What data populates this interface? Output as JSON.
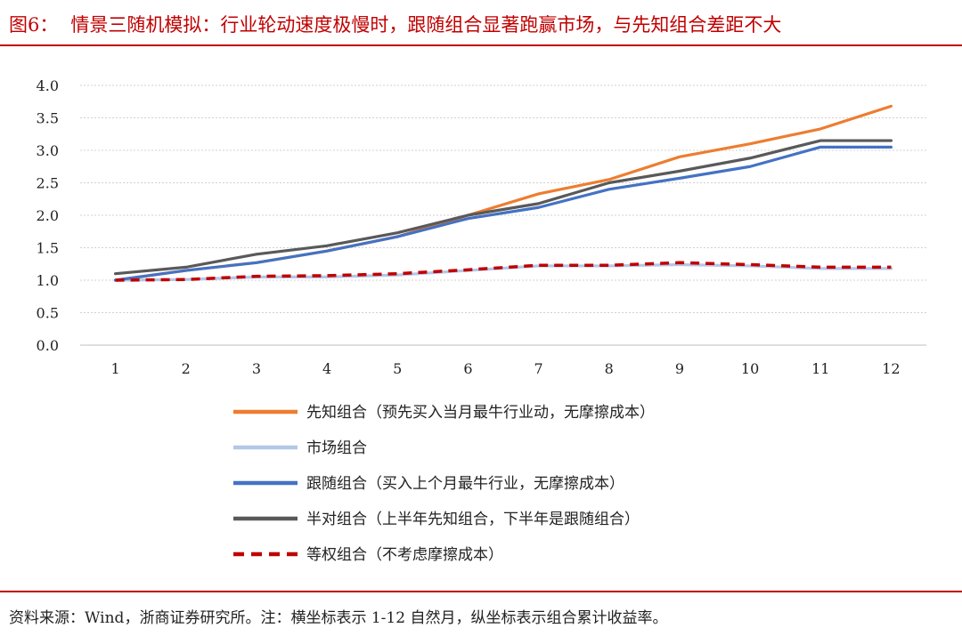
{
  "header": {
    "figure_no": "图6：",
    "title": "情景三随机模拟：行业轮动速度极慢时，跟随组合显著跑赢市场，与先知组合差距不大"
  },
  "footer": {
    "source": "资料来源：Wind，浙商证券研究所。注：横坐标表示 1-12 自然月，纵坐标表示组合累计收益率。"
  },
  "chart_data": {
    "type": "line",
    "x": [
      1,
      2,
      3,
      4,
      5,
      6,
      7,
      8,
      9,
      10,
      11,
      12
    ],
    "ylim": [
      0,
      4
    ],
    "yticks": [
      "0.0",
      "0.5",
      "1.0",
      "1.5",
      "2.0",
      "2.5",
      "3.0",
      "3.5",
      "4.0"
    ],
    "xticks": [
      "1",
      "2",
      "3",
      "4",
      "5",
      "6",
      "7",
      "8",
      "9",
      "10",
      "11",
      "12"
    ],
    "grid": "horizontal-dotted",
    "legend_position": "bottom",
    "series": [
      {
        "name": "先知组合（预先买入当月最牛行业动，无摩擦成本）",
        "color": "#ed7d31",
        "dash": false,
        "values": [
          1.0,
          1.15,
          1.27,
          1.45,
          1.67,
          2.0,
          2.33,
          2.55,
          2.9,
          3.1,
          3.33,
          3.68
        ]
      },
      {
        "name": "市场组合",
        "color": "#b4c7e7",
        "dash": false,
        "values": [
          1.0,
          1.01,
          1.05,
          1.05,
          1.08,
          1.15,
          1.22,
          1.22,
          1.24,
          1.22,
          1.18,
          1.18
        ]
      },
      {
        "name": "跟随组合（买入上个月最牛行业，无摩擦成本）",
        "color": "#4472c4",
        "dash": false,
        "values": [
          1.0,
          1.15,
          1.27,
          1.45,
          1.67,
          1.95,
          2.12,
          2.4,
          2.57,
          2.75,
          3.05,
          3.05
        ]
      },
      {
        "name": "半对组合（上半年先知组合，下半年是跟随组合）",
        "color": "#595959",
        "dash": false,
        "values": [
          1.1,
          1.2,
          1.4,
          1.53,
          1.73,
          2.0,
          2.18,
          2.5,
          2.68,
          2.88,
          3.15,
          3.15
        ]
      },
      {
        "name": "等权组合（不考虑摩擦成本）",
        "color": "#c00000",
        "dash": true,
        "values": [
          1.0,
          1.01,
          1.06,
          1.07,
          1.1,
          1.16,
          1.23,
          1.23,
          1.27,
          1.24,
          1.2,
          1.2
        ]
      }
    ]
  }
}
